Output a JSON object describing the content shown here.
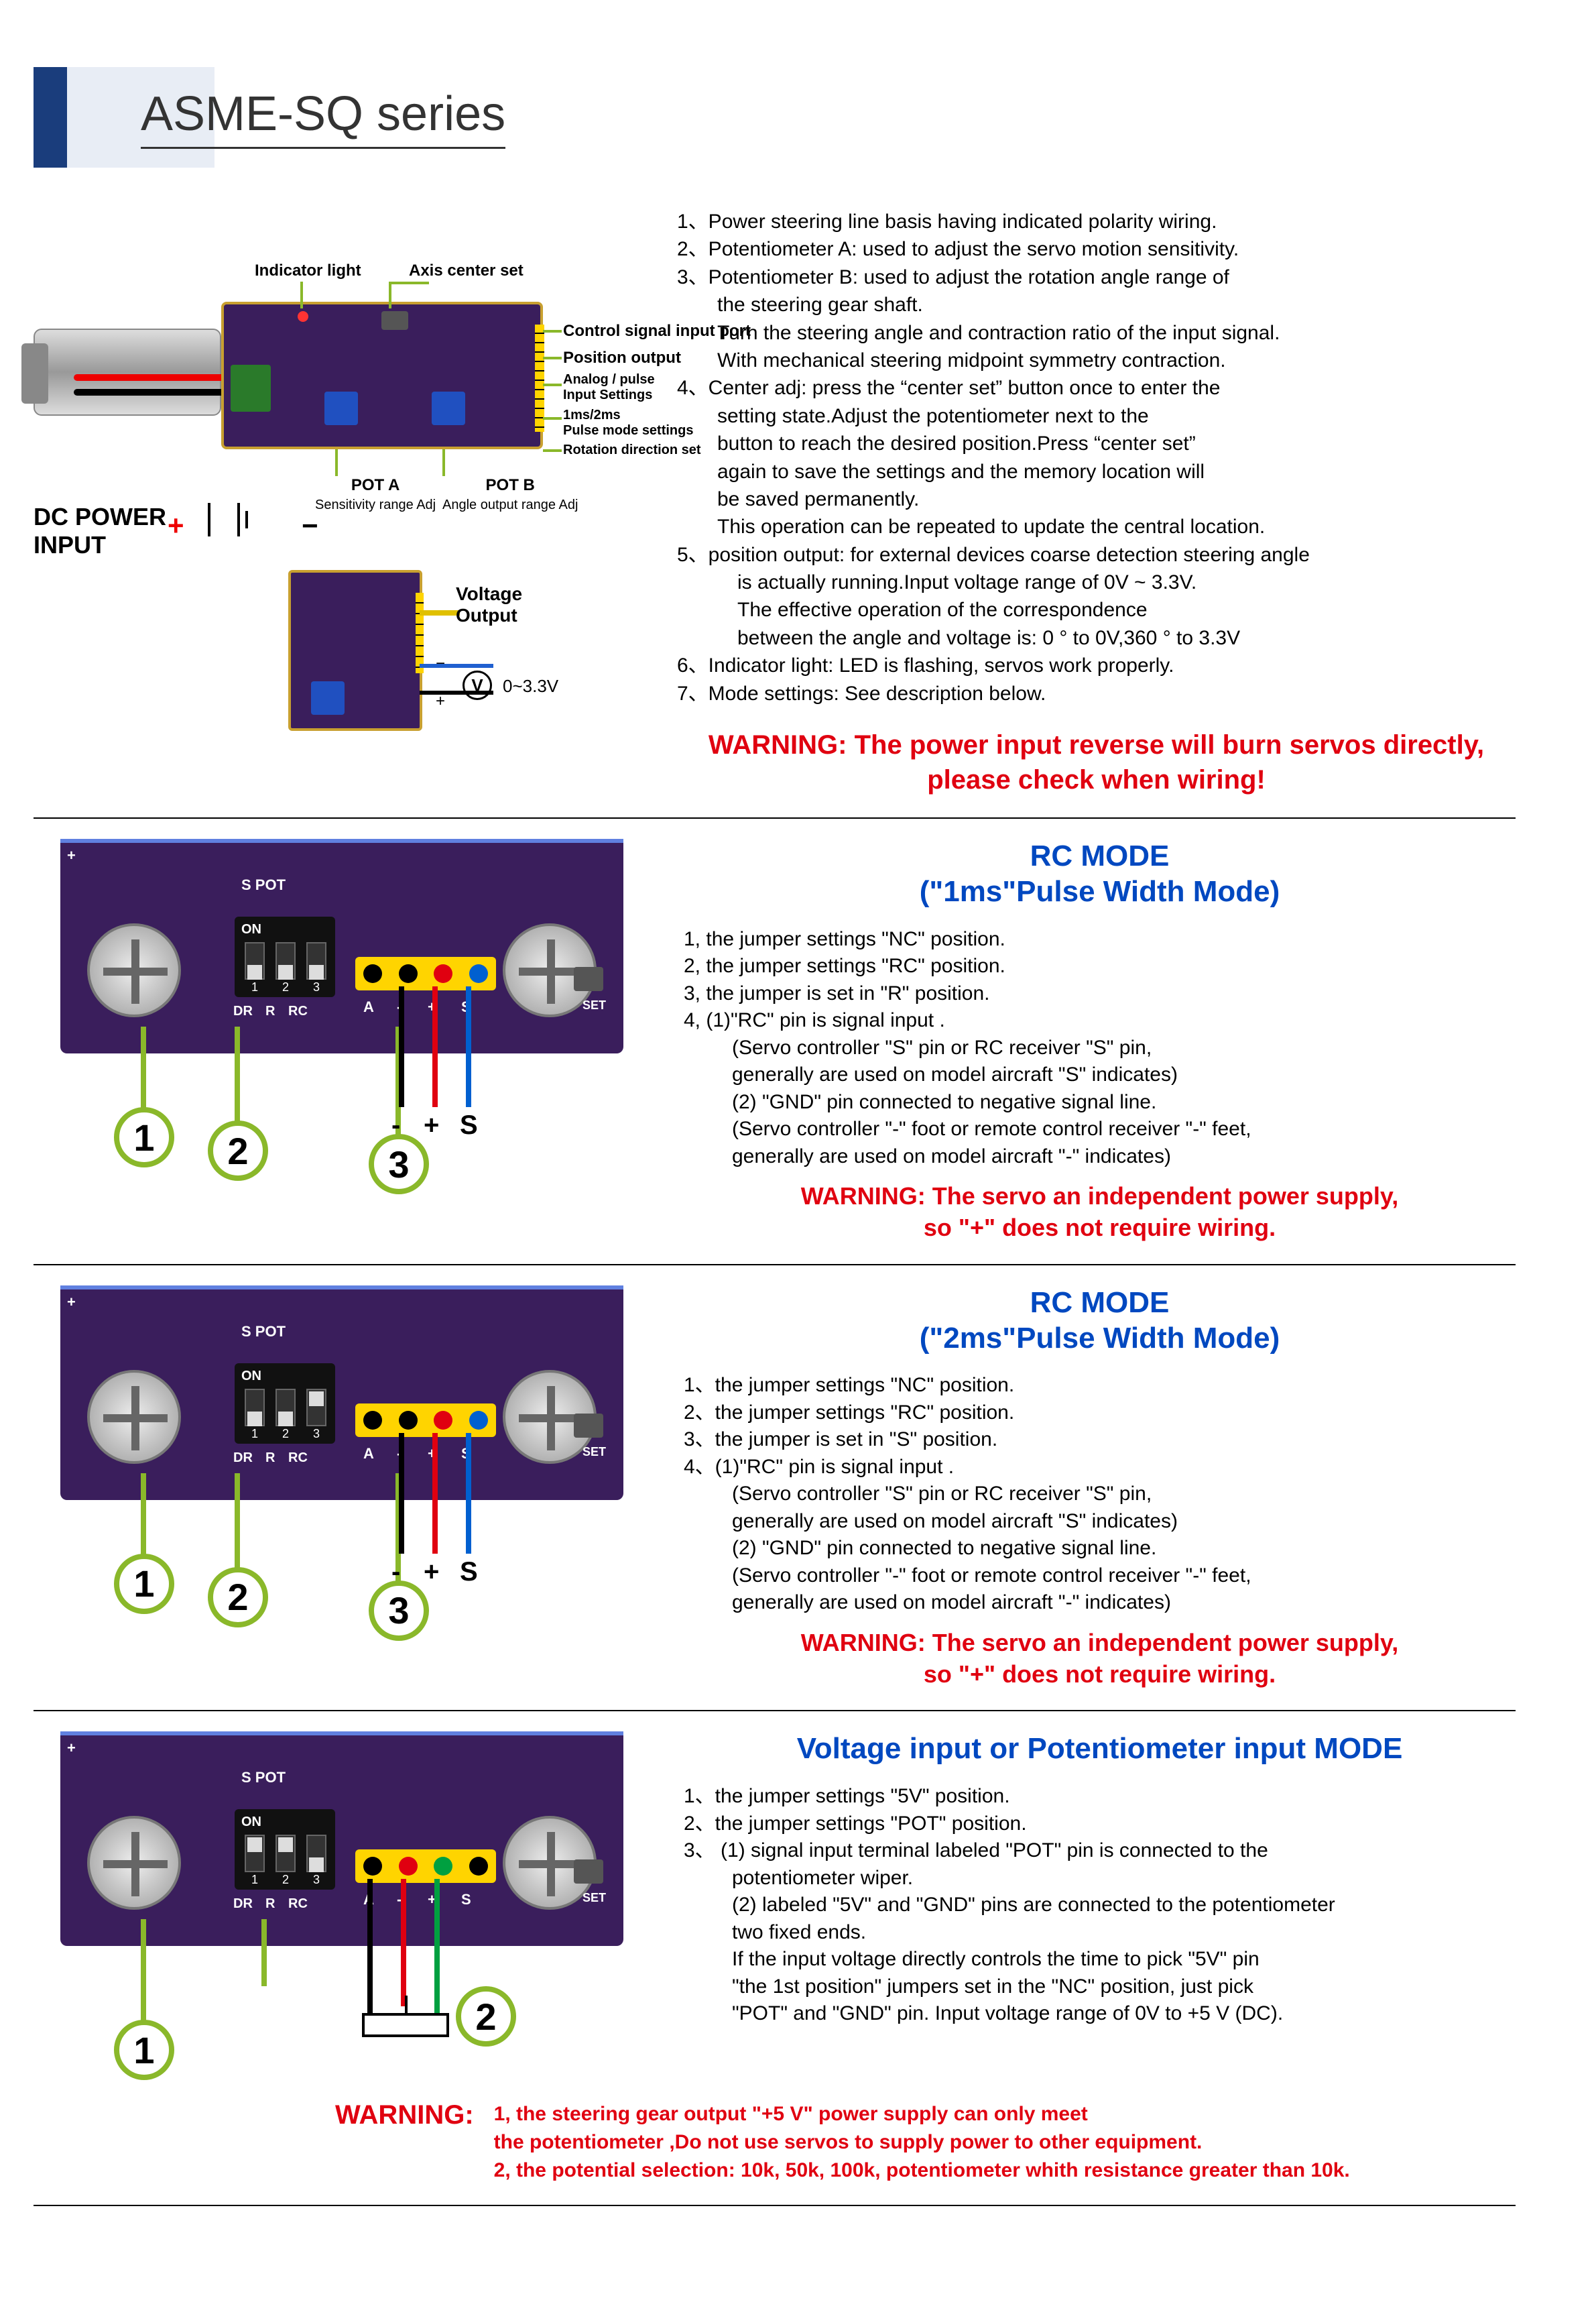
{
  "title": "ASME-SQ  series",
  "colors": {
    "header_blue": "#1a3d7c",
    "header_pale": "#e8edf5",
    "pcb": "#3a1e5c",
    "pcb_border": "#c8a030",
    "callout_green": "#8ab82a",
    "warning_red": "#e00010",
    "title_blue": "#0048c0",
    "pot_blue": "#2050c0",
    "terminal_green": "#2a7a2a",
    "yellow_header": "#ffd400"
  },
  "top_diagram": {
    "labels": {
      "indicator": "Indicator light",
      "axis_center": "Axis center set",
      "control_signal": "Control signal input port",
      "position_output": "Position output",
      "analog_pulse": "Analog / pulse\nInput Settings",
      "pulse_width": "1ms/2ms\nPulse mode settings",
      "rotation_dir": "Rotation direction set",
      "dc_power": "DC POWER\nINPUT",
      "pot_a": "POT A",
      "pot_a_sub": "Sensitivity range Adj",
      "pot_b": "POT B",
      "pot_b_sub": "Angle output range Adj"
    },
    "voltage_out": {
      "title": "Voltage\nOutput",
      "range": "0~3.3V",
      "meter": "V"
    }
  },
  "top_instructions": [
    "1、Power steering line basis having indicated polarity wiring.",
    "2、Potentiometer A: used to adjust the servo motion sensitivity.",
    "3、Potentiometer B: used to adjust the rotation angle range of",
    "     the steering gear shaft.",
    "     Turn the steering angle and contraction ratio of the input signal.",
    "     With mechanical steering midpoint symmetry contraction.",
    "4、Center adj: press the “center set” button once to enter the",
    "        setting state.Adjust the potentiometer next to the",
    "        button to reach the desired position.Press “center set”",
    "        again to save the settings and the memory location will",
    "        be saved permanently.",
    "        This operation can be repeated to update the central location.",
    "5、position output: for external devices coarse detection steering angle",
    "         is actually running.Input voltage range of 0V ~ 3.3V.",
    "         The effective operation of the correspondence",
    "         between the angle and voltage is: 0 ° to 0V,360 ° to 3.3V",
    "6、Indicator light: LED is flashing, servos work properly.",
    "7、Mode settings: See description below."
  ],
  "top_warning": "WARNING: The power input reverse will burn servos directly,\nplease check when wiring!",
  "closeup_silk": {
    "s_pot": "S POT",
    "on": "ON",
    "nums": [
      "1",
      "2",
      "3"
    ],
    "dr": "DR",
    "r": "R",
    "rc": "RC",
    "a": "A",
    "minus": "-",
    "plus2": "+",
    "s": "S",
    "set": "SET",
    "plus_edge": "+"
  },
  "pin_labels": {
    "m": "-",
    "p": "+",
    "s": "S"
  },
  "mode1": {
    "title1": "RC MODE",
    "title2": "(\"1ms\"Pulse Width Mode)",
    "lines": [
      "1, the jumper settings \"NC\" position.",
      "2, the jumper settings \"RC\" position.",
      "3, the jumper is set in \"R\" position.",
      "4, (1)\"RC\" pin is signal input .",
      "        (Servo controller \"S\" pin or RC receiver \"S\" pin,",
      "         generally are used on model aircraft \"S\" indicates)",
      "    (2) \"GND\" pin connected to negative signal line.",
      "        (Servo controller \"-\" foot or remote control receiver \"-\" feet,",
      "         generally are used on model aircraft \"-\" indicates)"
    ],
    "warning": "WARNING: The servo an independent power supply,\nso \"+\" does not require wiring.",
    "dip_up": [
      false,
      false,
      false
    ],
    "pins": [
      "black",
      "black",
      "red",
      "blue"
    ],
    "callouts": [
      "1",
      "2",
      "3"
    ]
  },
  "mode2": {
    "title1": "RC MODE",
    "title2": "(\"2ms\"Pulse Width Mode)",
    "lines": [
      "1、the jumper settings \"NC\" position.",
      "2、the jumper settings \"RC\" position.",
      "3、the jumper is set in \"S\" position.",
      "4、(1)\"RC\" pin is signal input .",
      "        (Servo controller \"S\" pin or RC receiver \"S\" pin,",
      "         generally are used on model aircraft \"S\" indicates)",
      "    (2) \"GND\" pin connected to negative signal line.",
      "        (Servo controller \"-\" foot or remote control receiver \"-\" feet,",
      "         generally are used on model aircraft \"-\" indicates)"
    ],
    "warning": "WARNING: The servo an independent power supply,\nso \"+\" does not require wiring.",
    "dip_up": [
      false,
      false,
      true
    ],
    "pins": [
      "black",
      "black",
      "red",
      "blue"
    ],
    "callouts": [
      "1",
      "2",
      "3"
    ]
  },
  "mode3": {
    "title": "Voltage input or Potentiometer input MODE",
    "lines": [
      "1、the jumper settings \"5V\" position.",
      "2、the jumper settings \"POT\" position.",
      "3、 (1) signal input terminal labeled \"POT\" pin is connected to the",
      "         potentiometer wiper.",
      "     (2) labeled \"5V\" and \"GND\" pins are connected to the potentiometer",
      "         two fixed ends.",
      "     If the input voltage directly controls the time to pick \"5V\" pin",
      "     \"the 1st position\" jumpers set in the \"NC\" position, just pick",
      "     \"POT\" and \"GND\" pin. Input voltage range of 0V to +5 V (DC)."
    ],
    "dip_up": [
      true,
      true,
      false
    ],
    "pins": [
      "black",
      "red",
      "green",
      "black"
    ],
    "callouts": [
      "1",
      "2"
    ],
    "warn_label": "WARNING:",
    "warn_lines": [
      "1, the steering gear output \"+5 V\" power supply can only meet",
      "the potentiometer ,Do not use servos to supply power to other equipment.",
      "2, the potential selection: 10k, 50k, 100k, potentiometer whith resistance greater than 10k."
    ]
  }
}
